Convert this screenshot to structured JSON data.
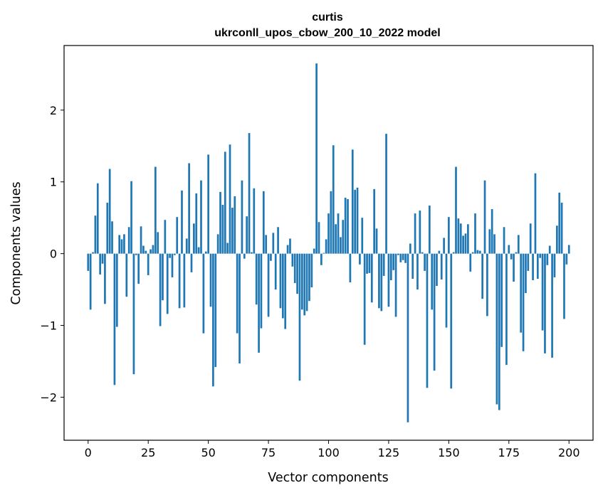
{
  "chart_data": {
    "type": "bar",
    "title": "curtis",
    "subtitle": "ukrconll_upos_cbow_200_10_2022 model",
    "xlabel": "Vector components",
    "ylabel": "Components values",
    "xlim": [
      -10,
      210
    ],
    "ylim": [
      -2.6,
      2.9
    ],
    "xticks": [
      0,
      25,
      50,
      75,
      100,
      125,
      150,
      175,
      200
    ],
    "yticks": [
      -2,
      -1,
      0,
      1,
      2
    ],
    "ytick_labels": [
      "−2",
      "−1",
      "0",
      "1",
      "2"
    ],
    "grid": false,
    "bar_color": "#1f77b4",
    "values": [
      -0.24,
      -0.78,
      0.02,
      0.53,
      0.98,
      -0.29,
      -0.14,
      -0.7,
      0.71,
      1.18,
      0.45,
      -1.83,
      -1.02,
      0.26,
      0.2,
      0.27,
      -0.6,
      0.37,
      1.01,
      -1.68,
      -0.02,
      -0.42,
      0.38,
      0.11,
      0.04,
      -0.3,
      0.06,
      0.12,
      1.21,
      0.3,
      -1.01,
      -0.65,
      0.47,
      -0.84,
      -0.06,
      -0.33,
      -0.02,
      0.51,
      -0.76,
      0.88,
      -0.75,
      0.21,
      1.26,
      -0.26,
      0.42,
      0.84,
      0.09,
      1.02,
      -1.11,
      0.03,
      1.38,
      -0.74,
      -1.85,
      -1.58,
      0.27,
      0.86,
      0.68,
      1.42,
      0.15,
      1.52,
      0.64,
      0.8,
      -1.11,
      -1.53,
      1.02,
      -0.07,
      0.52,
      1.68,
      0.02,
      0.91,
      -0.71,
      -1.38,
      -1.04,
      0.87,
      0.26,
      -0.88,
      -0.1,
      0.29,
      -0.5,
      0.37,
      -0.76,
      -0.9,
      -1.05,
      0.12,
      0.21,
      -0.18,
      -0.41,
      -0.56,
      -1.77,
      -0.78,
      -0.86,
      -0.8,
      -0.66,
      -0.47,
      0.07,
      2.65,
      0.44,
      -0.16,
      0.01,
      0.2,
      0.56,
      0.87,
      1.51,
      0.41,
      0.56,
      0.23,
      0.47,
      0.78,
      0.76,
      -0.4,
      1.45,
      0.89,
      0.92,
      -0.15,
      0.5,
      -1.27,
      -0.28,
      -0.27,
      -0.68,
      0.9,
      0.35,
      -0.76,
      -0.8,
      -0.31,
      1.67,
      -0.74,
      -0.37,
      -0.23,
      -0.88,
      -0.02,
      -0.12,
      -0.09,
      -0.13,
      -2.35,
      0.14,
      -0.35,
      0.56,
      -0.5,
      0.6,
      0.02,
      -0.24,
      -1.87,
      0.67,
      -0.78,
      -1.63,
      -0.45,
      0.04,
      -0.36,
      0.22,
      -1.03,
      0.51,
      -1.88,
      0.02,
      1.21,
      0.49,
      0.42,
      0.25,
      0.28,
      0.41,
      -0.25,
      0.02,
      0.56,
      0.05,
      0.04,
      -0.63,
      1.02,
      -0.87,
      0.34,
      0.62,
      0.27,
      -2.1,
      -2.18,
      -1.3,
      0.37,
      -1.55,
      0.12,
      -0.08,
      -0.39,
      0.02,
      0.26,
      -1.1,
      -1.36,
      -0.55,
      -0.24,
      0.42,
      -0.37,
      1.12,
      -0.35,
      -0.06,
      -1.07,
      -1.39,
      -0.16,
      0.11,
      -1.45,
      -0.33,
      0.39,
      0.85,
      0.71,
      -0.91,
      -0.15,
      0.12
    ]
  }
}
